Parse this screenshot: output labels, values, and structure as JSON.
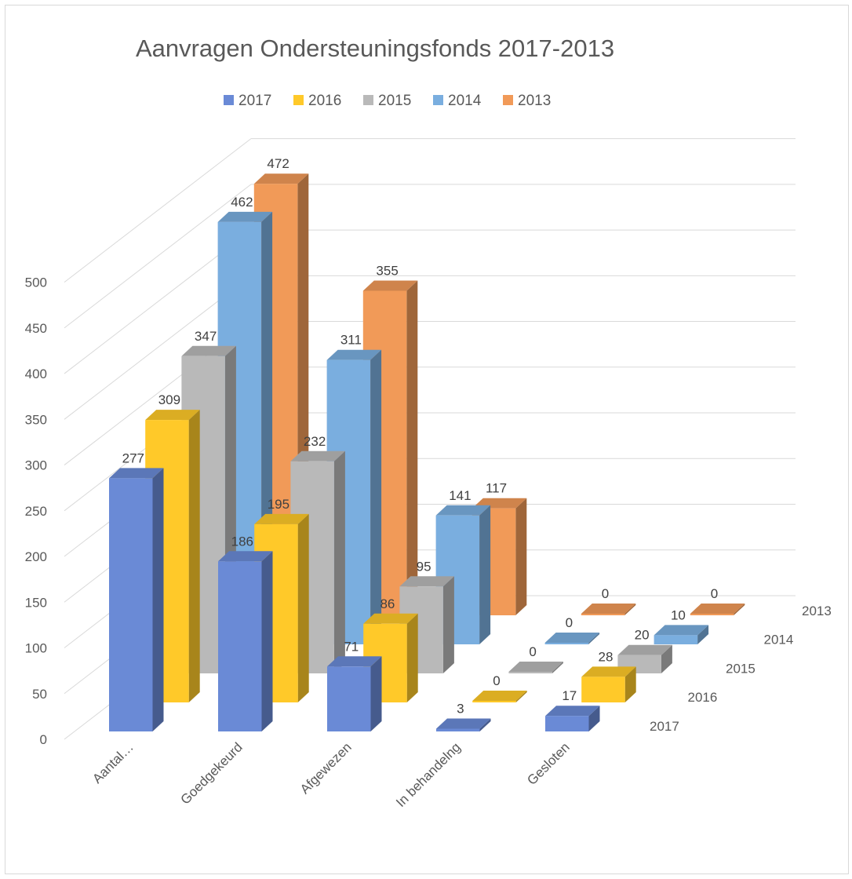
{
  "chart_data": {
    "type": "bar",
    "subtype": "3d-clustered-depth",
    "title": "Aanvragen Ondersteuningsfonds 2017-2013",
    "categories": [
      "Aantal…",
      "Goedgekeurd",
      "Afgewezen",
      "In behandelng",
      "Gesloten"
    ],
    "series": [
      {
        "name": "2017",
        "color": "#6a8ad6",
        "values": [
          277,
          186,
          71,
          3,
          17
        ]
      },
      {
        "name": "2016",
        "color": "#ffc929",
        "values": [
          309,
          195,
          86,
          0,
          28
        ]
      },
      {
        "name": "2015",
        "color": "#b9b9b9",
        "values": [
          347,
          232,
          95,
          0,
          20
        ]
      },
      {
        "name": "2014",
        "color": "#7aaedf",
        "values": [
          462,
          311,
          141,
          0,
          10
        ]
      },
      {
        "name": "2013",
        "color": "#f19a58",
        "values": [
          472,
          355,
          117,
          0,
          0
        ]
      }
    ],
    "depth_labels": [
      "2017",
      "2016",
      "2015",
      "2014",
      "2013"
    ],
    "ylim": [
      0,
      500
    ],
    "yticks": [
      0,
      50,
      100,
      150,
      200,
      250,
      300,
      350,
      400,
      450,
      500
    ],
    "grid": true,
    "legend_position": "top",
    "data_labels": true
  }
}
